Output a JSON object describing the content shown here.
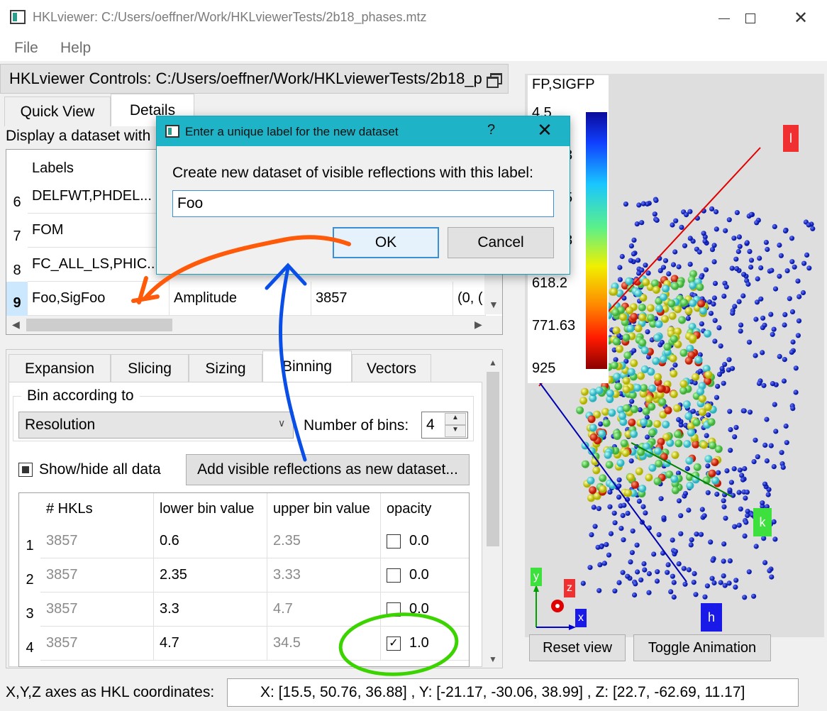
{
  "window": {
    "title": "HKLviewer: C:/Users/oeffner/Work/HKLviewerTests/2b18_phases.mtz",
    "close_glyph": "✕"
  },
  "menu": {
    "file": "File",
    "help": "Help"
  },
  "dock": {
    "title": "HKLviewer Controls: C:/Users/oeffner/Work/HKLviewerTests/2b18_phases.mtz"
  },
  "tabs": {
    "quick_view": "Quick View",
    "details": "Details"
  },
  "display_label": "Display a dataset with",
  "dataset_table": {
    "header_labels": "Labels",
    "rows": [
      {
        "index": "6",
        "labels": "DELFWT,PHDEL..."
      },
      {
        "index": "7",
        "labels": "FOM"
      },
      {
        "index": "8",
        "labels": "FC_ALL_LS,PHIC..."
      },
      {
        "index": "9",
        "labels": "Foo,SigFoo",
        "type": "Amplitude",
        "count": "3857",
        "extra": "(0, ("
      }
    ]
  },
  "sub_tabs": [
    "Expansion",
    "Slicing",
    "Sizing",
    "Binning",
    "Vectors"
  ],
  "binning": {
    "group_title": "Bin according to",
    "bin_by": "Resolution",
    "nbins_label": "Number of bins:",
    "nbins": "4",
    "show_hide_label": "Show/hide all data",
    "add_button": "Add visible reflections as new dataset...",
    "columns": [
      "# HKLs",
      "lower bin value",
      "upper bin value",
      "opacity"
    ],
    "rows": [
      {
        "index": "1",
        "hkls": "3857",
        "lower": "0.6",
        "upper": "2.35",
        "checked": false,
        "opacity": "0.0"
      },
      {
        "index": "2",
        "hkls": "3857",
        "lower": "2.35",
        "upper": "3.33",
        "checked": false,
        "opacity": "0.0"
      },
      {
        "index": "3",
        "hkls": "3857",
        "lower": "3.3",
        "upper": "4.7",
        "checked": false,
        "opacity": "0.0"
      },
      {
        "index": "4",
        "hkls": "3857",
        "lower": "4.7",
        "upper": "34.5",
        "checked": true,
        "opacity": "1.0"
      }
    ]
  },
  "view3d": {
    "legend_title": "FP,SIGFP",
    "legend_ticks": [
      "4.5",
      "3",
      "5",
      "8",
      "618.2",
      "771.63",
      "925"
    ],
    "axis_labels": {
      "l": "l",
      "k": "k",
      "h": "h",
      "x": "x",
      "y": "y",
      "z": "z"
    },
    "reset_button": "Reset view",
    "toggle_button": "Toggle Animation"
  },
  "status": {
    "label": "X,Y,Z axes as HKL coordinates:",
    "value": "X: [15.5, 50.76, 36.88] , Y: [-21.17, -30.06, 38.99] , Z: [22.7, -62.69, 11.17]"
  },
  "dialog": {
    "title": "Enter a unique label for the new dataset",
    "help": "?",
    "close": "✕",
    "prompt": "Create new dataset of visible reflections with this label:",
    "input_value": "Foo",
    "ok": "OK",
    "cancel": "Cancel"
  },
  "colors": {
    "dialog_title_bg": "#1fb3c7",
    "annotation_orange": "#ff5a0a",
    "annotation_blue": "#0a4ee8",
    "annotation_green": "#3cd400"
  }
}
